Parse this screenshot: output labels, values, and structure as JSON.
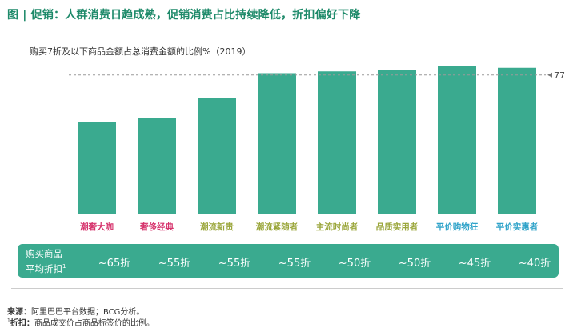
{
  "title": "图 | 促销：人群消费日趋成熟，促销消费占比持续降低，折扣偏好下降",
  "chart_data": {
    "type": "bar",
    "title": "购买7折及以下商品金额占总消费金额的比例%（2019）",
    "categories": [
      "潮奢大咖",
      "奢侈经典",
      "潮流新贵",
      "潮流紧随者",
      "主流时尚者",
      "品质实用者",
      "平价购物狂",
      "平价实惠者"
    ],
    "category_colors": [
      "#d6336c",
      "#d6336c",
      "#9aa63a",
      "#9aa63a",
      "#9aa63a",
      "#9aa63a",
      "#2fa3c9",
      "#2fa3c9"
    ],
    "values": [
      51,
      53,
      64,
      78,
      79,
      80,
      82,
      81
    ],
    "ylim": [
      0,
      100
    ],
    "reference_line": {
      "value": 77,
      "label": "77"
    },
    "bar_color": "#3aaa8f",
    "grid": false,
    "legend": "none"
  },
  "discount_row": {
    "label_line1": "购买商品",
    "label_line2": "平均折扣",
    "label_sup": "1",
    "values": [
      "~65折",
      "~55折",
      "~55折",
      "~55折",
      "~50折",
      "~50折",
      "~45折",
      "~40折"
    ]
  },
  "footer": {
    "source_label": "来源：",
    "source_text": "阿里巴巴平台数据；BCG分析。",
    "note_sup": "1",
    "note_label": "折扣：",
    "note_text": "商品成交价占商品标签价的比例。"
  }
}
